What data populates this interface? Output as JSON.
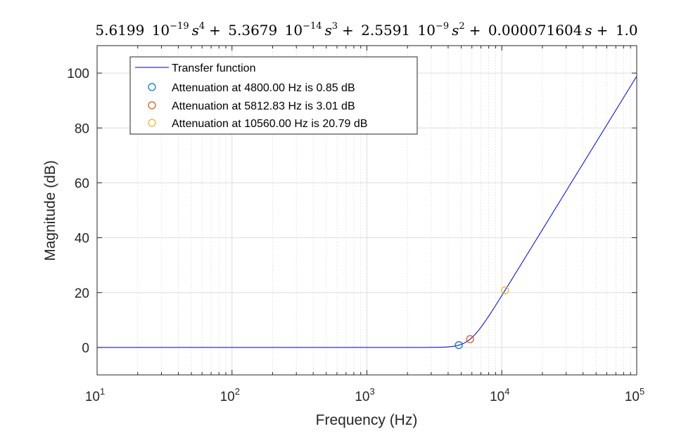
{
  "chart_data": {
    "type": "line",
    "title": {
      "terms": [
        {
          "mantissa": "5.6199",
          "base": "10",
          "exp": "−19",
          "var": "s",
          "pow": "4"
        },
        {
          "mantissa": "5.3679",
          "base": "10",
          "exp": "−14",
          "var": "s",
          "pow": "3"
        },
        {
          "mantissa": "2.5591",
          "base": "10",
          "exp": "−9",
          "var": "s",
          "pow": "2"
        },
        {
          "mantissa": "0.000071604",
          "base": "",
          "exp": "",
          "var": "s",
          "pow": ""
        },
        {
          "mantissa": "1.0",
          "base": "",
          "exp": "",
          "var": "",
          "pow": ""
        }
      ]
    },
    "xlabel": "Frequency (Hz)",
    "ylabel": "Magnitude (dB)",
    "xscale": "log",
    "xlim": [
      10,
      100000
    ],
    "ylim": [
      -10,
      110
    ],
    "xticks": [
      {
        "base": "10",
        "exp": "1",
        "value": 10
      },
      {
        "base": "10",
        "exp": "2",
        "value": 100
      },
      {
        "base": "10",
        "exp": "3",
        "value": 1000
      },
      {
        "base": "10",
        "exp": "4",
        "value": 10000
      },
      {
        "base": "10",
        "exp": "5",
        "value": 100000
      }
    ],
    "yticks": [
      "0",
      "20",
      "40",
      "60",
      "80",
      "100"
    ],
    "grid": true,
    "legend_position": "top-left",
    "series": [
      {
        "name": "Transfer function",
        "kind": "line",
        "color": "#0000cc",
        "coefficients": [
          5.6199e-19,
          5.3679e-14,
          2.5591e-09,
          7.1604e-05,
          1.0
        ]
      }
    ],
    "markers": [
      {
        "name": "Attenuation at 4800.00 Hz is 0.85 dB",
        "x": 4800.0,
        "y": 0.85,
        "color": "#0072BD"
      },
      {
        "name": "Attenuation at 5812.83 Hz is 3.01 dB",
        "x": 5812.83,
        "y": 3.01,
        "color": "#D95319"
      },
      {
        "name": "Attenuation at 10560.00 Hz is 20.79 dB",
        "x": 10560.0,
        "y": 20.79,
        "color": "#EDB120"
      }
    ]
  }
}
